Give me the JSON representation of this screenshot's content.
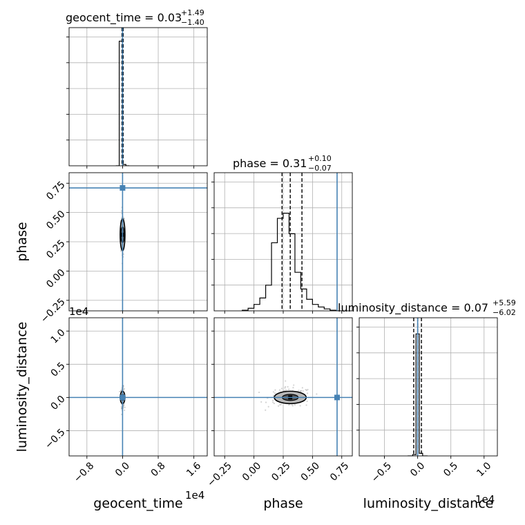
{
  "chart_data": {
    "type": "corner",
    "parameters": [
      "geocent_time",
      "phase",
      "luminosity_distance"
    ],
    "axis_labels": {
      "geocent_time": "geocent_time",
      "phase": "phase",
      "luminosity_distance": "luminosity_distance"
    },
    "offset_labels": {
      "geocent_time": "1e4",
      "luminosity_distance": "1e4"
    },
    "injected": {
      "geocent_time": 0.0,
      "phase": 0.71,
      "luminosity_distance": 0.0
    },
    "titles": [
      {
        "param": "geocent_time",
        "name": "geocent_time",
        "median": "0.03",
        "plus": "+1.49",
        "minus": "−1.40"
      },
      {
        "param": "phase",
        "name": "phase",
        "median": "0.31",
        "plus": "+0.10",
        "minus": "−0.07"
      },
      {
        "param": "luminosity_distance",
        "name": "luminosity_distance",
        "median": "0.07",
        "plus": "+5.59",
        "minus": "−6.02"
      }
    ],
    "ranges": {
      "geocent_time": [
        -1.2,
        1.9
      ],
      "phase": [
        -0.34,
        0.84
      ],
      "luminosity_distance": [
        -0.88,
        1.2
      ]
    },
    "ticks": {
      "geocent_time": [
        {
          "v": -0.8,
          "label": "−0.8"
        },
        {
          "v": 0.0,
          "label": "0.0"
        },
        {
          "v": 0.8,
          "label": "0.8"
        },
        {
          "v": 1.6,
          "label": "1.6"
        }
      ],
      "phase": [
        {
          "v": -0.25,
          "label": "−0.25"
        },
        {
          "v": 0.0,
          "label": "0.00"
        },
        {
          "v": 0.25,
          "label": "0.25"
        },
        {
          "v": 0.5,
          "label": "0.50"
        },
        {
          "v": 0.75,
          "label": "0.75"
        }
      ],
      "luminosity_distance": [
        {
          "v": -0.5,
          "label": "−0.5"
        },
        {
          "v": 0.0,
          "label": "0.0"
        },
        {
          "v": 0.5,
          "label": "0.5"
        },
        {
          "v": 1.0,
          "label": "1.0"
        }
      ]
    },
    "histograms": {
      "geocent_time": {
        "bin_edges": [
          -0.15,
          -0.075,
          0.0,
          0.075,
          0.15
        ],
        "counts": [
          0,
          0.97,
          0.01,
          0
        ],
        "quantiles": [
          -0.0137,
          0.0003,
          0.0152
        ]
      },
      "phase": {
        "bin_edges": [
          -0.1,
          -0.05,
          0.0,
          0.05,
          0.1,
          0.15,
          0.2,
          0.25,
          0.3,
          0.35,
          0.4,
          0.45,
          0.5,
          0.55,
          0.6,
          0.65,
          0.7,
          0.75
        ],
        "counts": [
          0.005,
          0.02,
          0.05,
          0.1,
          0.2,
          0.53,
          0.72,
          0.76,
          0.6,
          0.3,
          0.17,
          0.09,
          0.05,
          0.03,
          0.015,
          0.005,
          0
        ],
        "quantiles": [
          0.24,
          0.31,
          0.41
        ]
      },
      "luminosity_distance": {
        "bin_edges": [
          -0.15,
          -0.075,
          -0.025,
          0.025,
          0.075,
          0.15
        ],
        "counts": [
          0,
          0.01,
          0.95,
          0.02,
          0
        ],
        "quantiles": [
          -0.0595,
          0.0007,
          0.0566
        ]
      }
    },
    "grid": true,
    "injection_color": "#4682b4",
    "line_color": "#000000",
    "scatter_color": "#9e9e9e"
  }
}
